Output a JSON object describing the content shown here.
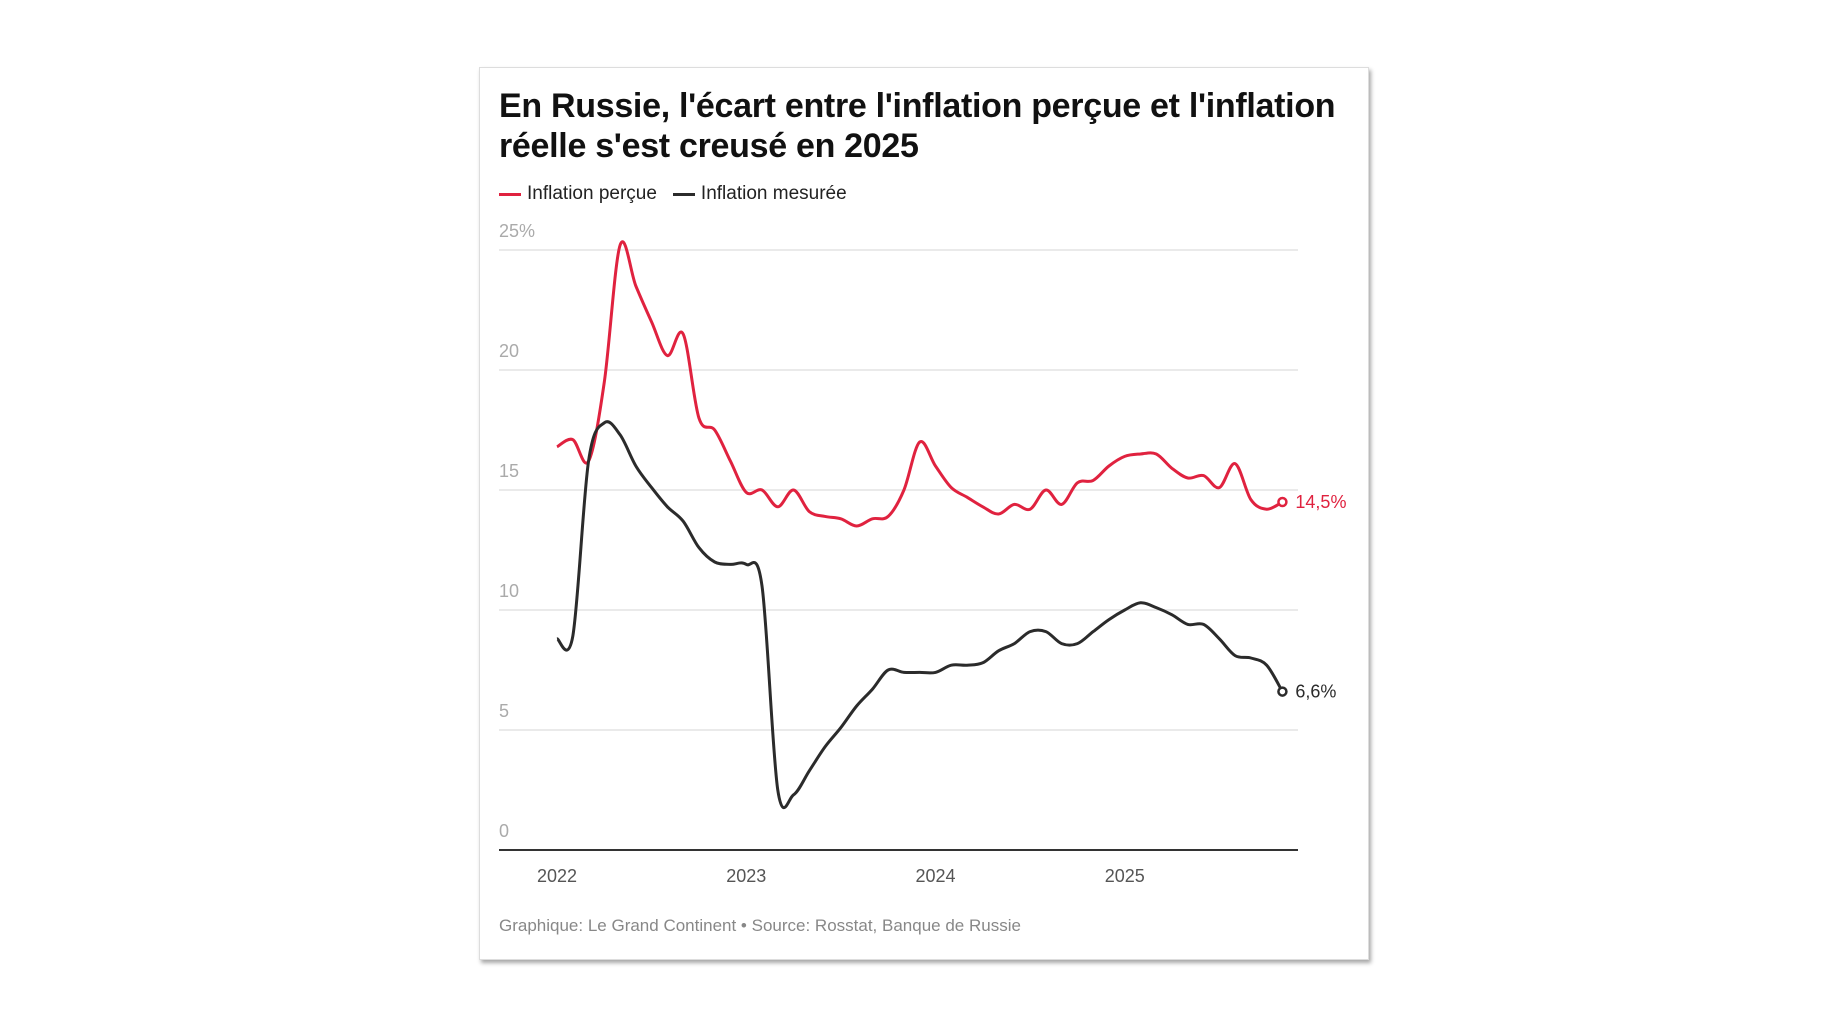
{
  "title": "En Russie, l'écart entre l'inflation perçue et l'inflation réelle s'est creusé en 2025",
  "footer": "Graphique: Le Grand Continent • Source: Rosstat, Banque de Russie",
  "chart_data": {
    "type": "line",
    "title": "En Russie, l'écart entre l'inflation perçue et l'inflation réelle s'est creusé en 2025",
    "xlabel": "",
    "ylabel": "",
    "ylim": [
      0,
      25
    ],
    "y_ticks": [
      "0",
      "5",
      "10",
      "15",
      "20",
      "25%"
    ],
    "y_tick_values": [
      0,
      5,
      10,
      15,
      20,
      25
    ],
    "x_ticks": [
      "2022",
      "2023",
      "2024",
      "2025"
    ],
    "x_start": "2022-01",
    "x_end": "2025-11",
    "x_frequency": "monthly",
    "grid": true,
    "legend_position": "top-left",
    "series": [
      {
        "name": "Inflation perçue",
        "color": "#e0223f",
        "end_label": "14,5%",
        "values": [
          16.8,
          17.1,
          16.2,
          19.5,
          25.2,
          23.5,
          22.0,
          20.6,
          21.5,
          18.0,
          17.5,
          16.2,
          14.9,
          15.0,
          14.3,
          15.0,
          14.1,
          13.9,
          13.8,
          13.5,
          13.8,
          13.9,
          15.0,
          17.0,
          16.0,
          15.1,
          14.7,
          14.3,
          14.0,
          14.4,
          14.2,
          15.0,
          14.4,
          15.3,
          15.4,
          16.0,
          16.4,
          16.5,
          16.5,
          15.9,
          15.5,
          15.6,
          15.1,
          16.1,
          14.6,
          14.2,
          14.5
        ]
      },
      {
        "name": "Inflation mesurée",
        "color": "#2b2b2b",
        "end_label": "6,6%",
        "values": [
          8.8,
          8.9,
          16.2,
          17.8,
          17.3,
          16.0,
          15.1,
          14.3,
          13.7,
          12.6,
          12.0,
          11.9,
          11.9,
          11.0,
          2.5,
          2.3,
          3.3,
          4.3,
          5.1,
          6.0,
          6.7,
          7.5,
          7.4,
          7.4,
          7.4,
          7.7,
          7.7,
          7.8,
          8.3,
          8.6,
          9.1,
          9.1,
          8.6,
          8.6,
          9.1,
          9.6,
          10.0,
          10.3,
          10.1,
          9.8,
          9.4,
          9.4,
          8.8,
          8.1,
          8.0,
          7.7,
          6.6
        ]
      }
    ]
  }
}
